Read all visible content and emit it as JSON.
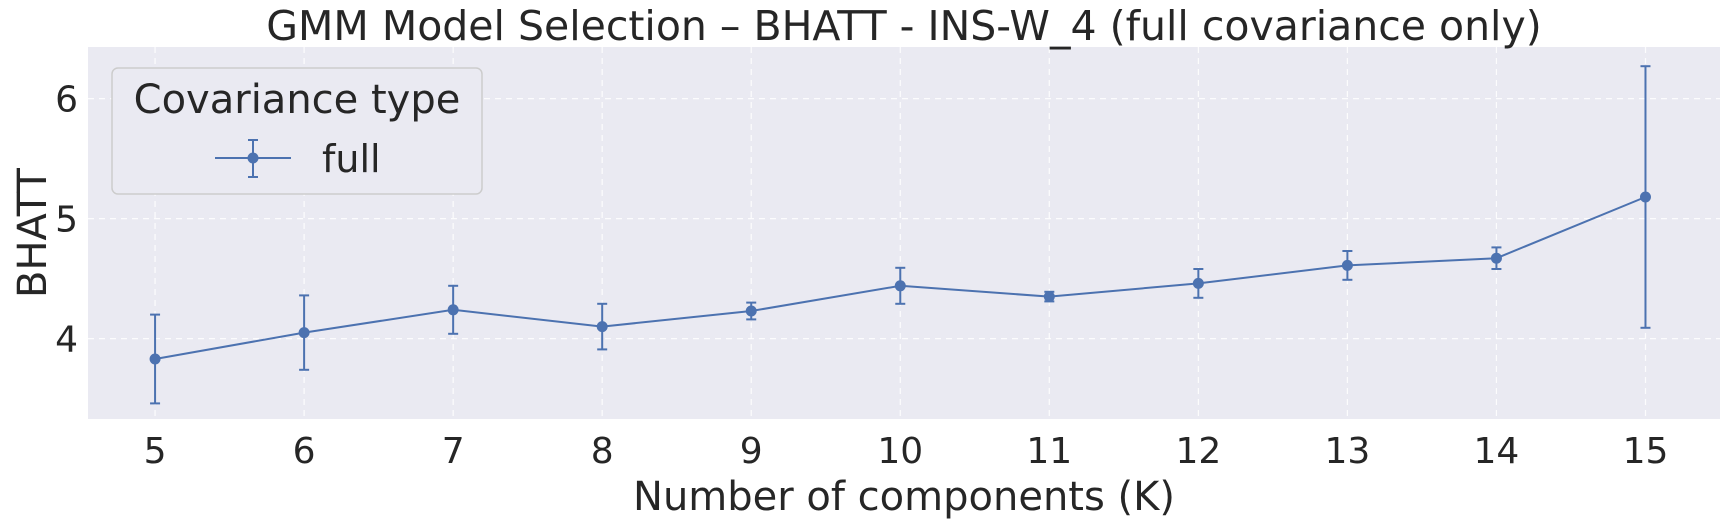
{
  "chart_data": {
    "type": "line",
    "title": "GMM Model Selection – BHATT - INS-W_4 (full covariance only)",
    "xlabel": "Number of components (K)",
    "ylabel": "BHATT",
    "x": [
      5,
      6,
      7,
      8,
      9,
      10,
      11,
      12,
      13,
      14,
      15
    ],
    "xlim": [
      4.55,
      15.5
    ],
    "ylim": [
      3.33,
      6.43
    ],
    "yticks": [
      4,
      5,
      6
    ],
    "grid": true,
    "legend": {
      "title": "Covariance type",
      "placement": "top-left"
    },
    "series": [
      {
        "name": "full",
        "color": "#4c72b0",
        "values": [
          3.83,
          4.05,
          4.24,
          4.1,
          4.23,
          4.44,
          4.35,
          4.46,
          4.61,
          4.67,
          5.18
        ],
        "error": [
          0.37,
          0.31,
          0.2,
          0.19,
          0.07,
          0.15,
          0.04,
          0.12,
          0.12,
          0.09,
          1.09
        ]
      }
    ]
  },
  "colors": {
    "background": "#eaeaf2",
    "grid": "#ffffff",
    "text": "#262626"
  }
}
